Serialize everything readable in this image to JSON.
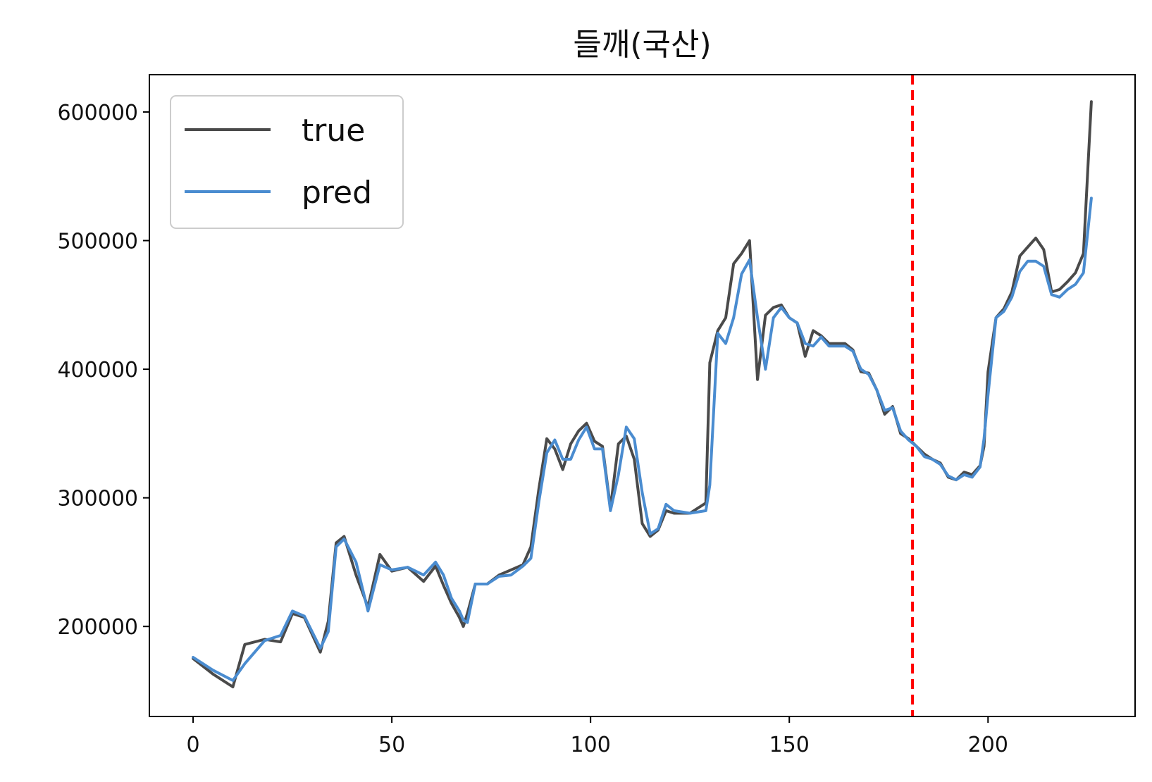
{
  "chart_data": {
    "type": "line",
    "title": "들깨(국산)",
    "xlabel": "",
    "ylabel": "",
    "xlim": [
      -11,
      237
    ],
    "ylim": [
      130000,
      629000
    ],
    "x_ticks": [
      0,
      50,
      100,
      150,
      200
    ],
    "x_tick_labels": [
      "0",
      "50",
      "100",
      "150",
      "200"
    ],
    "y_ticks": [
      200000,
      300000,
      400000,
      500000,
      600000
    ],
    "y_tick_labels": [
      "200000",
      "300000",
      "400000",
      "500000",
      "600000"
    ],
    "grid": false,
    "legend_position": "top-left",
    "vline": {
      "x": 181,
      "color": "#ff0000",
      "style": "dashed"
    },
    "series": [
      {
        "name": "true",
        "color": "#4a4a4a",
        "x": [
          0,
          5,
          10,
          13,
          18,
          22,
          25,
          28,
          32,
          34,
          36,
          38,
          41,
          44,
          47,
          50,
          54,
          58,
          61,
          63,
          65,
          67,
          68,
          69,
          71,
          74,
          77,
          80,
          83,
          85,
          87,
          89,
          91,
          93,
          95,
          97,
          99,
          101,
          103,
          105,
          107,
          109,
          111,
          113,
          115,
          117,
          119,
          121,
          125,
          129,
          130,
          132,
          134,
          136,
          138,
          140,
          142,
          144,
          146,
          148,
          150,
          152,
          154,
          156,
          158,
          160,
          162,
          164,
          166,
          168,
          170,
          172,
          174,
          176,
          178,
          180,
          182,
          184,
          186,
          188,
          190,
          192,
          194,
          196,
          198,
          199,
          200,
          202,
          204,
          206,
          208,
          210,
          212,
          214,
          216,
          218,
          220,
          222,
          224,
          226
        ],
        "y": [
          175000,
          163000,
          153000,
          186000,
          190000,
          188000,
          210000,
          207000,
          180000,
          204000,
          265000,
          270000,
          240000,
          215000,
          256000,
          243000,
          246000,
          235000,
          247000,
          232000,
          218000,
          207000,
          200000,
          210000,
          233000,
          233000,
          240000,
          244000,
          248000,
          262000,
          307000,
          346000,
          338000,
          322000,
          342000,
          352000,
          358000,
          344000,
          340000,
          292000,
          342000,
          348000,
          330000,
          280000,
          270000,
          275000,
          290000,
          288000,
          288000,
          296000,
          405000,
          430000,
          440000,
          482000,
          490000,
          500000,
          392000,
          442000,
          448000,
          450000,
          440000,
          436000,
          410000,
          430000,
          426000,
          420000,
          420000,
          420000,
          415000,
          398000,
          397000,
          384000,
          365000,
          371000,
          350000,
          346000,
          340000,
          334000,
          330000,
          327000,
          316000,
          314000,
          320000,
          318000,
          325000,
          340000,
          398000,
          440000,
          447000,
          460000,
          488000,
          495000,
          502000,
          493000,
          460000,
          462000,
          468000,
          475000,
          490000,
          608000
        ]
      },
      {
        "name": "pred",
        "color": "#4a8cd0",
        "x": [
          0,
          5,
          10,
          13,
          18,
          22,
          25,
          28,
          32,
          34,
          36,
          38,
          41,
          44,
          47,
          50,
          54,
          58,
          61,
          63,
          65,
          67,
          68,
          69,
          71,
          74,
          77,
          80,
          83,
          85,
          87,
          89,
          91,
          93,
          95,
          97,
          99,
          101,
          103,
          105,
          107,
          109,
          111,
          113,
          115,
          117,
          119,
          121,
          125,
          129,
          130,
          132,
          134,
          136,
          138,
          140,
          142,
          144,
          146,
          148,
          150,
          152,
          154,
          156,
          158,
          160,
          162,
          164,
          166,
          168,
          170,
          172,
          174,
          176,
          178,
          180,
          182,
          184,
          186,
          188,
          190,
          192,
          194,
          196,
          198,
          199,
          200,
          202,
          204,
          206,
          208,
          210,
          212,
          214,
          216,
          218,
          220,
          222,
          224,
          226
        ],
        "y": [
          176000,
          166000,
          158000,
          171000,
          189000,
          193000,
          212000,
          208000,
          183000,
          196000,
          262000,
          268000,
          250000,
          212000,
          248000,
          244000,
          246000,
          240000,
          250000,
          240000,
          222000,
          212000,
          205000,
          203000,
          233000,
          233000,
          239000,
          240000,
          247000,
          253000,
          297000,
          335000,
          345000,
          330000,
          330000,
          345000,
          355000,
          338000,
          338000,
          290000,
          318000,
          355000,
          346000,
          304000,
          272000,
          276000,
          295000,
          290000,
          288000,
          290000,
          310000,
          428000,
          420000,
          440000,
          474000,
          485000,
          440000,
          400000,
          440000,
          448000,
          440000,
          436000,
          420000,
          418000,
          425000,
          418000,
          418000,
          418000,
          414000,
          400000,
          396000,
          384000,
          368000,
          370000,
          352000,
          345000,
          340000,
          332000,
          330000,
          326000,
          317000,
          314000,
          318000,
          316000,
          324000,
          346000,
          380000,
          440000,
          445000,
          456000,
          476000,
          484000,
          484000,
          480000,
          458000,
          456000,
          462000,
          466000,
          475000,
          533000
        ]
      }
    ]
  }
}
